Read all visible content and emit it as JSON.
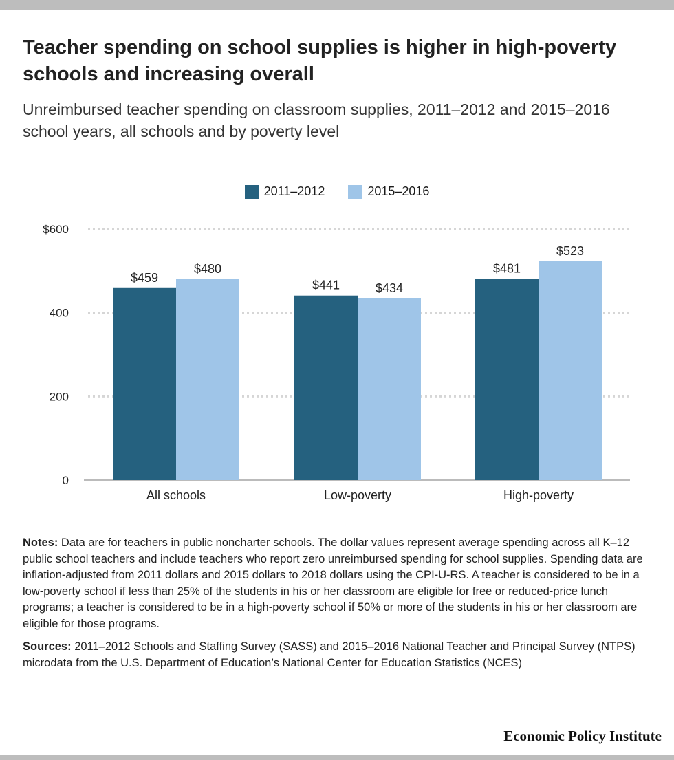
{
  "header": {
    "title": "Teacher spending on school supplies is higher in high-poverty schools and increasing overall",
    "subtitle": "Unreimbursed teacher spending on classroom supplies, 2011–2012 and 2015–2016 school years, all schools and by poverty level"
  },
  "chart_data": {
    "type": "bar",
    "categories": [
      "All schools",
      "Low-poverty",
      "High-poverty"
    ],
    "series": [
      {
        "name": "2011–2012",
        "values": [
          459,
          441,
          481
        ],
        "labels": [
          "$459",
          "$441",
          "$481"
        ],
        "color": "#25617f"
      },
      {
        "name": "2015–2016",
        "values": [
          480,
          434,
          523
        ],
        "labels": [
          "$480",
          "$434",
          "$523"
        ],
        "color": "#9fc5e8"
      }
    ],
    "ylim": [
      0,
      600
    ],
    "yticks": [
      0,
      200,
      400,
      600
    ],
    "ytick_labels": [
      "0",
      "200",
      "400",
      "$600"
    ],
    "grid": true,
    "legend": "top-center",
    "xlabel": "",
    "ylabel": ""
  },
  "notes": {
    "notes_label": "Notes:",
    "notes_text": " Data are for teachers in public noncharter schools. The dollar values represent average spending across all K–12 public school teachers and include teachers who report zero unreimbursed spending for school supplies. Spending data are inflation-adjusted from 2011 dollars and 2015 dollars to 2018 dollars using the CPI-U-RS. A teacher is considered to be in a low-poverty school if less than 25% of the students in his or her classroom are eligible for free or reduced-price lunch programs; a teacher is considered to be in a high-poverty school if 50% or more of the students in his or her classroom are eligible for those programs.",
    "sources_label": "Sources:",
    "sources_text": " 2011–2012 Schools and Staffing Survey (SASS) and 2015–2016 National Teacher and Principal Survey (NTPS) microdata from the U.S. Department of Education’s National Center for Education Statistics (NCES)"
  },
  "footer": {
    "brand": "Economic Policy Institute"
  }
}
